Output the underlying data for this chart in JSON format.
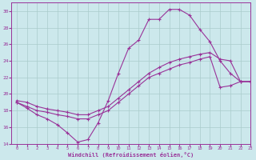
{
  "bg_color": "#cce8ec",
  "line_color": "#993399",
  "grid_color": "#aacccc",
  "xlabel": "Windchill (Refroidissement éolien,°C)",
  "ylim": [
    14,
    31
  ],
  "xlim": [
    -0.5,
    23
  ],
  "yticks": [
    14,
    16,
    18,
    20,
    22,
    24,
    26,
    28,
    30
  ],
  "xticks": [
    0,
    1,
    2,
    3,
    4,
    5,
    6,
    7,
    8,
    9,
    10,
    11,
    12,
    13,
    14,
    15,
    16,
    17,
    18,
    19,
    20,
    21,
    22,
    23
  ],
  "line_wavy_x": [
    0,
    1,
    2,
    3,
    4,
    5,
    6,
    7,
    8,
    9,
    10,
    11,
    12,
    13,
    14,
    15,
    16,
    17,
    18,
    19,
    20,
    21,
    22,
    23
  ],
  "line_wavy_y": [
    19.0,
    18.3,
    17.5,
    17.0,
    16.3,
    15.3,
    14.2,
    14.5,
    16.5,
    19.2,
    22.5,
    25.5,
    26.5,
    29.0,
    29.0,
    30.2,
    30.2,
    29.5,
    27.8,
    26.3,
    24.0,
    22.5,
    21.5,
    21.5
  ],
  "line_upper_x": [
    0,
    1,
    2,
    3,
    4,
    5,
    6,
    7,
    8,
    9,
    10,
    11,
    12,
    13,
    14,
    15,
    16,
    17,
    18,
    19,
    20,
    21,
    22,
    23
  ],
  "line_upper_y": [
    19.2,
    19.0,
    18.5,
    18.2,
    18.0,
    17.8,
    17.5,
    17.5,
    18.0,
    18.5,
    19.5,
    20.5,
    21.5,
    22.5,
    23.2,
    23.8,
    24.2,
    24.5,
    24.8,
    25.0,
    24.2,
    24.0,
    21.5,
    21.5
  ],
  "line_lower_x": [
    0,
    1,
    2,
    3,
    4,
    5,
    6,
    7,
    8,
    9,
    10,
    11,
    12,
    13,
    14,
    15,
    16,
    17,
    18,
    19,
    20,
    21,
    22,
    23
  ],
  "line_lower_y": [
    19.0,
    18.5,
    18.0,
    17.8,
    17.5,
    17.3,
    17.0,
    17.0,
    17.5,
    18.0,
    19.0,
    20.0,
    21.0,
    22.0,
    22.5,
    23.0,
    23.5,
    23.8,
    24.2,
    24.5,
    20.8,
    21.0,
    21.5,
    21.5
  ],
  "figsize": [
    3.2,
    2.0
  ],
  "dpi": 100
}
